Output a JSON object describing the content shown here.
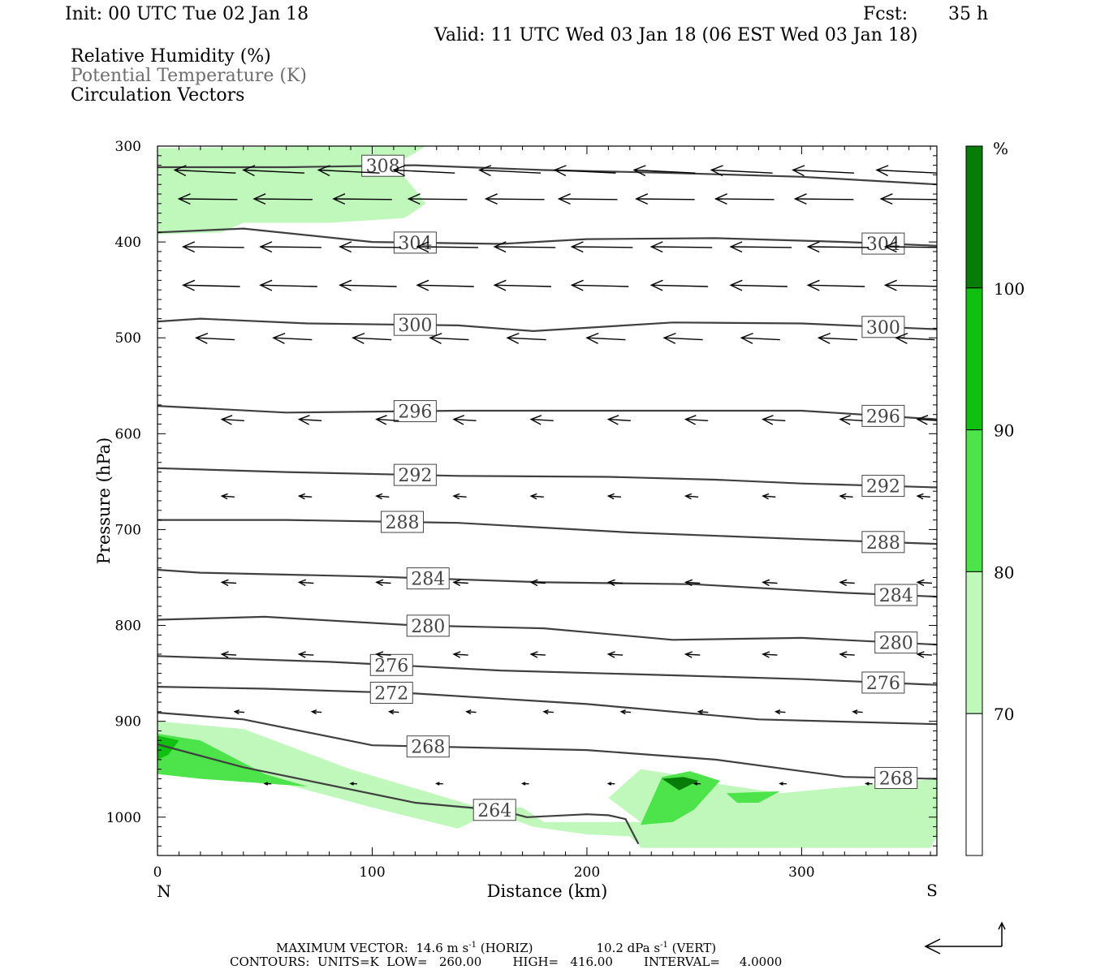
{
  "header": {
    "init": "Init: 00 UTC Tue 02 Jan 18",
    "fcst_label": "Fcst:",
    "fcst_value": "35 h",
    "valid": "Valid: 11 UTC Wed 03 Jan 18 (06 EST Wed 03 Jan 18)"
  },
  "legend": {
    "rh": "Relative Humidity (%)",
    "theta": "Potential Temperature (K)",
    "vectors": "Circulation Vectors"
  },
  "colors": {
    "rh_70_80": "#c0f8bc",
    "rh_80_90": "#4ce44a",
    "rh_90_100": "#10c010",
    "rh_100_plus": "#087c08",
    "contour": "#404040",
    "axis": "#000000",
    "label_gray": "#6d6d6d"
  },
  "chart_data": {
    "type": "cross-section",
    "xlabel": "Distance (km)",
    "ylabel": "Pressure (hPa)",
    "x_left_label": "N",
    "x_right_label": "S",
    "xlim": [
      0,
      363
    ],
    "ylim": [
      300,
      1040
    ],
    "y_reversed": true,
    "xticks": [
      0,
      100,
      200,
      300
    ],
    "yticks": [
      300,
      400,
      500,
      600,
      700,
      800,
      900,
      1000
    ],
    "colorbar": {
      "unit": "%",
      "levels": [
        70,
        80,
        90,
        100
      ],
      "labels": [
        "70",
        "80",
        "90",
        "100"
      ]
    },
    "theta_contours": [
      {
        "label": "308",
        "points": [
          [
            0,
            322
          ],
          [
            60,
            322
          ],
          [
            120,
            320
          ],
          [
            180,
            325
          ],
          [
            240,
            328
          ],
          [
            300,
            332
          ],
          [
            363,
            340
          ]
        ]
      },
      {
        "label": "304",
        "points": [
          [
            0,
            390
          ],
          [
            40,
            386
          ],
          [
            100,
            400
          ],
          [
            160,
            402
          ],
          [
            200,
            397
          ],
          [
            260,
            396
          ],
          [
            320,
            400
          ],
          [
            363,
            404
          ]
        ]
      },
      {
        "label": "300",
        "points": [
          [
            0,
            483
          ],
          [
            20,
            480
          ],
          [
            70,
            485
          ],
          [
            140,
            487
          ],
          [
            175,
            493
          ],
          [
            240,
            484
          ],
          [
            300,
            485
          ],
          [
            363,
            491
          ]
        ]
      },
      {
        "label": "296",
        "points": [
          [
            0,
            571
          ],
          [
            60,
            578
          ],
          [
            140,
            576
          ],
          [
            220,
            576
          ],
          [
            300,
            576
          ],
          [
            363,
            585
          ]
        ]
      },
      {
        "label": "292",
        "points": [
          [
            0,
            636
          ],
          [
            60,
            640
          ],
          [
            140,
            644
          ],
          [
            210,
            645
          ],
          [
            260,
            648
          ],
          [
            300,
            652
          ],
          [
            363,
            656
          ]
        ]
      },
      {
        "label": "288",
        "points": [
          [
            0,
            690
          ],
          [
            60,
            690
          ],
          [
            140,
            693
          ],
          [
            220,
            703
          ],
          [
            300,
            710
          ],
          [
            363,
            715
          ]
        ]
      },
      {
        "label": "284",
        "points": [
          [
            0,
            742
          ],
          [
            20,
            745
          ],
          [
            100,
            749
          ],
          [
            180,
            755
          ],
          [
            250,
            757
          ],
          [
            320,
            766
          ],
          [
            363,
            770
          ]
        ]
      },
      {
        "label": "280",
        "points": [
          [
            0,
            794
          ],
          [
            50,
            791
          ],
          [
            120,
            800
          ],
          [
            180,
            803
          ],
          [
            240,
            815
          ],
          [
            300,
            813
          ],
          [
            363,
            820
          ]
        ]
      },
      {
        "label": "276",
        "points": [
          [
            0,
            832
          ],
          [
            80,
            838
          ],
          [
            160,
            847
          ],
          [
            240,
            852
          ],
          [
            300,
            856
          ],
          [
            363,
            862
          ]
        ]
      },
      {
        "label": "272",
        "points": [
          [
            0,
            864
          ],
          [
            50,
            866
          ],
          [
            120,
            871
          ],
          [
            200,
            882
          ],
          [
            280,
            898
          ],
          [
            363,
            903
          ]
        ]
      },
      {
        "label": "268",
        "points": [
          [
            0,
            891
          ],
          [
            40,
            898
          ],
          [
            100,
            925
          ],
          [
            200,
            930
          ],
          [
            260,
            940
          ],
          [
            320,
            958
          ],
          [
            363,
            960
          ]
        ]
      },
      {
        "label": "264",
        "points": [
          [
            0,
            924
          ],
          [
            40,
            948
          ],
          [
            120,
            985
          ],
          [
            160,
            993
          ],
          [
            172,
            1000
          ],
          [
            200,
            997
          ],
          [
            210,
            998
          ],
          [
            218,
            1002
          ],
          [
            224,
            1028
          ]
        ]
      }
    ],
    "rh_regions": [
      {
        "level": 70,
        "points": [
          [
            0,
            302
          ],
          [
            80,
            300
          ],
          [
            125,
            300
          ],
          [
            120,
            307
          ],
          [
            110,
            320
          ],
          [
            118,
            340
          ],
          [
            125,
            360
          ],
          [
            115,
            375
          ],
          [
            80,
            380
          ],
          [
            40,
            380
          ],
          [
            30,
            390
          ],
          [
            0,
            392
          ]
        ]
      },
      {
        "level": 70,
        "points": [
          [
            0,
            900
          ],
          [
            40,
            908
          ],
          [
            90,
            950
          ],
          [
            150,
            990
          ],
          [
            175,
            1010
          ],
          [
            200,
            1018
          ],
          [
            220,
            1020
          ],
          [
            224,
            1028
          ],
          [
            225,
            1032
          ],
          [
            360,
            1032
          ],
          [
            363,
            1020
          ],
          [
            363,
            960
          ],
          [
            290,
            975
          ],
          [
            260,
            965
          ],
          [
            240,
            955
          ],
          [
            225,
            950
          ],
          [
            210,
            980
          ],
          [
            225,
            1005
          ],
          [
            180,
            1005
          ],
          [
            170,
            990
          ],
          [
            160,
            990
          ],
          [
            140,
            1012
          ],
          [
            100,
            990
          ],
          [
            50,
            960
          ],
          [
            0,
            950
          ]
        ]
      },
      {
        "level": 80,
        "points": [
          [
            0,
            913
          ],
          [
            20,
            920
          ],
          [
            50,
            955
          ],
          [
            70,
            968
          ],
          [
            20,
            960
          ],
          [
            0,
            955
          ]
        ]
      },
      {
        "level": 80,
        "points": [
          [
            225,
            1008
          ],
          [
            235,
            958
          ],
          [
            248,
            952
          ],
          [
            262,
            962
          ],
          [
            250,
            992
          ],
          [
            240,
            1005
          ]
        ]
      },
      {
        "level": 80,
        "points": [
          [
            265,
            975
          ],
          [
            290,
            973
          ],
          [
            280,
            985
          ],
          [
            270,
            985
          ]
        ]
      },
      {
        "level": 90,
        "points": [
          [
            0,
            915
          ],
          [
            10,
            920
          ],
          [
            5,
            935
          ],
          [
            0,
            940
          ]
        ]
      },
      {
        "level": 100,
        "points": [
          [
            235,
            960
          ],
          [
            245,
            958
          ],
          [
            252,
            962
          ],
          [
            243,
            972
          ]
        ]
      }
    ]
  },
  "footer": {
    "max_vector": "MAXIMUM VECTOR:  14.6 m s",
    "horiz_sup": "-1",
    "horiz_tail": " (HORIZ)",
    "vert_head": "10.2 dPa s",
    "vert_sup": "-1",
    "vert_tail": " (VERT)",
    "contours": "CONTOURS:  UNITS=K  LOW=   260.00        HIGH=   416.00        INTERVAL=     4.0000"
  }
}
